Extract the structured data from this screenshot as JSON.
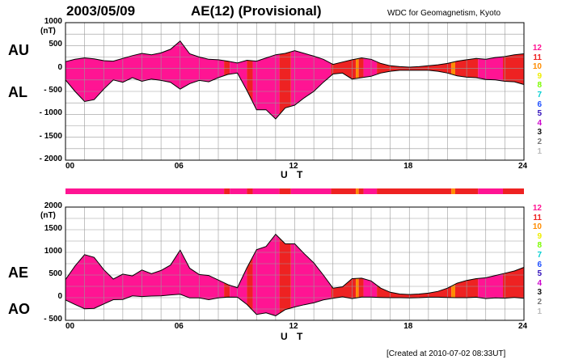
{
  "header": {
    "date": "2003/05/09",
    "title": "AE(12) (Provisional)",
    "source": "WDC for Geomagnetism, Kyoto"
  },
  "footer": "[Created at 2010-07-02 08:33UT]",
  "legend": {
    "items": [
      {
        "label": "12",
        "color": "#ff1493"
      },
      {
        "label": "11",
        "color": "#ee2222"
      },
      {
        "label": "10",
        "color": "#ff8c00"
      },
      {
        "label": "9",
        "color": "#eeee00"
      },
      {
        "label": "8",
        "color": "#7cfc00"
      },
      {
        "label": "7",
        "color": "#00ced1"
      },
      {
        "label": "6",
        "color": "#1e4fff"
      },
      {
        "label": "5",
        "color": "#3311bb"
      },
      {
        "label": "4",
        "color": "#cc00cc"
      },
      {
        "label": "3",
        "color": "#111111"
      },
      {
        "label": "2",
        "color": "#777777"
      },
      {
        "label": "1",
        "color": "#bbbbbb"
      }
    ]
  },
  "chart_data": [
    {
      "type": "area",
      "name": "AU/AL",
      "labels": {
        "upper": "AU",
        "lower": "AL",
        "unit": "(nT)",
        "xlabel": "U T"
      },
      "ylim": [
        -2000,
        1000
      ],
      "yticks": [
        1000,
        500,
        0,
        -500,
        -1000,
        -1500,
        -2000
      ],
      "ytick_labels": [
        "1000",
        "500",
        "0",
        "- 500",
        "- 1000",
        "- 1500",
        "- 2000"
      ],
      "xlim": [
        0,
        24
      ],
      "xtick_labels": [
        "00",
        "06",
        "12",
        "18",
        "24"
      ],
      "grid": true,
      "x": [
        0,
        0.5,
        1,
        1.5,
        2,
        2.5,
        3,
        3.5,
        4,
        4.5,
        5,
        5.5,
        6,
        6.5,
        7,
        7.5,
        8,
        8.5,
        9,
        9.5,
        10,
        10.5,
        11,
        11.5,
        12,
        12.5,
        13,
        13.5,
        14,
        14.5,
        15,
        15.5,
        16,
        16.5,
        17,
        17.5,
        18,
        18.5,
        19,
        19.5,
        20,
        20.5,
        21,
        21.5,
        22,
        22.5,
        23,
        23.5,
        24
      ],
      "series": [
        {
          "name": "AU",
          "values": [
            150,
            200,
            230,
            210,
            170,
            160,
            220,
            280,
            330,
            300,
            340,
            420,
            600,
            320,
            250,
            200,
            190,
            160,
            120,
            180,
            160,
            230,
            300,
            330,
            390,
            330,
            270,
            200,
            90,
            140,
            190,
            230,
            200,
            110,
            60,
            40,
            30,
            40,
            60,
            80,
            110,
            160,
            190,
            220,
            200,
            240,
            260,
            300,
            320
          ]
        },
        {
          "name": "AL",
          "values": [
            -250,
            -500,
            -720,
            -680,
            -450,
            -250,
            -300,
            -200,
            -280,
            -230,
            -260,
            -300,
            -450,
            -330,
            -260,
            -290,
            -200,
            -130,
            -100,
            -480,
            -900,
            -900,
            -1100,
            -860,
            -800,
            -640,
            -500,
            -300,
            -120,
            -100,
            -230,
            -200,
            -170,
            -100,
            -60,
            -40,
            -40,
            -40,
            -40,
            -60,
            -100,
            -160,
            -190,
            -200,
            -240,
            -250,
            -280,
            -290,
            -350
          ]
        }
      ]
    },
    {
      "type": "area",
      "name": "AE/AO",
      "labels": {
        "upper": "AE",
        "lower": "AO",
        "unit": "(nT)",
        "xlabel": "U T"
      },
      "ylim": [
        -500,
        2000
      ],
      "yticks": [
        2000,
        1500,
        1000,
        500,
        0,
        -500
      ],
      "ytick_labels": [
        "2000",
        "1500",
        "1000",
        "500",
        "0",
        "- 500"
      ],
      "xlim": [
        0,
        24
      ],
      "xtick_labels": [
        "00",
        "06",
        "12",
        "18",
        "24"
      ],
      "grid": true,
      "x": [
        0,
        0.5,
        1,
        1.5,
        2,
        2.5,
        3,
        3.5,
        4,
        4.5,
        5,
        5.5,
        6,
        6.5,
        7,
        7.5,
        8,
        8.5,
        9,
        9.5,
        10,
        10.5,
        11,
        11.5,
        12,
        12.5,
        13,
        13.5,
        14,
        14.5,
        15,
        15.5,
        16,
        16.5,
        17,
        17.5,
        18,
        18.5,
        19,
        19.5,
        20,
        20.5,
        21,
        21.5,
        22,
        22.5,
        23,
        23.5,
        24
      ],
      "series": [
        {
          "name": "AE",
          "values": [
            400,
            700,
            950,
            890,
            620,
            410,
            520,
            480,
            610,
            530,
            600,
            720,
            1050,
            650,
            510,
            490,
            390,
            290,
            220,
            660,
            1060,
            1130,
            1400,
            1190,
            1190,
            970,
            770,
            500,
            210,
            240,
            420,
            430,
            370,
            210,
            120,
            80,
            70,
            80,
            100,
            140,
            210,
            320,
            380,
            420,
            440,
            490,
            540,
            590,
            670
          ]
        },
        {
          "name": "AO",
          "values": [
            -50,
            -150,
            -245,
            -235,
            -140,
            -45,
            -40,
            40,
            25,
            35,
            40,
            60,
            75,
            -5,
            -5,
            -45,
            -5,
            15,
            10,
            -150,
            -370,
            -335,
            -400,
            -265,
            -205,
            -155,
            -115,
            -50,
            -15,
            20,
            -20,
            15,
            15,
            5,
            0,
            0,
            -5,
            0,
            10,
            10,
            5,
            0,
            0,
            10,
            -20,
            -5,
            -10,
            5,
            -15
          ]
        }
      ]
    }
  ],
  "station_bar": [
    {
      "from": 0,
      "to": 8.3,
      "level": "12"
    },
    {
      "from": 8.3,
      "to": 8.6,
      "level": "11"
    },
    {
      "from": 8.6,
      "to": 9.5,
      "level": "12"
    },
    {
      "from": 9.5,
      "to": 9.8,
      "level": "11"
    },
    {
      "from": 9.8,
      "to": 11.2,
      "level": "12"
    },
    {
      "from": 11.2,
      "to": 11.8,
      "level": "11"
    },
    {
      "from": 11.8,
      "to": 13.9,
      "level": "12"
    },
    {
      "from": 13.9,
      "to": 15.2,
      "level": "11"
    },
    {
      "from": 15.2,
      "to": 15.35,
      "level": "10"
    },
    {
      "from": 15.35,
      "to": 15.6,
      "level": "11"
    },
    {
      "from": 15.6,
      "to": 16.3,
      "level": "12"
    },
    {
      "from": 16.3,
      "to": 20.2,
      "level": "11"
    },
    {
      "from": 20.2,
      "to": 20.4,
      "level": "10"
    },
    {
      "from": 20.4,
      "to": 21.6,
      "level": "11"
    },
    {
      "from": 21.6,
      "to": 22.9,
      "level": "12"
    },
    {
      "from": 22.9,
      "to": 24,
      "level": "11"
    }
  ]
}
